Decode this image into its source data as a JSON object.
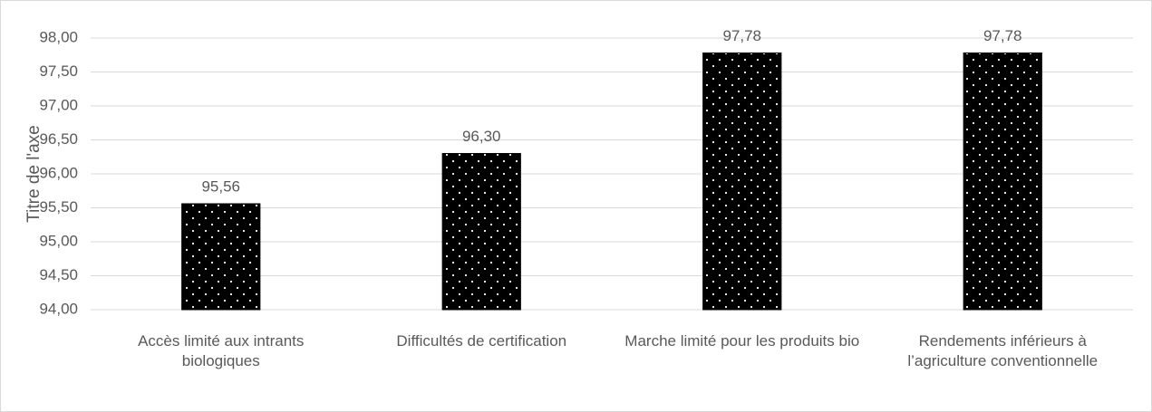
{
  "chart_data": {
    "type": "bar",
    "y_label": "Titre de l'axe",
    "categories": [
      "Accès limité aux intrants biologiques",
      "Difficultés de certification",
      "Marche limité pour les produits bio",
      "Rendements inférieurs à l’agriculture conventionnelle"
    ],
    "values": [
      95.56,
      96.3,
      97.78,
      97.78
    ],
    "value_labels": [
      "95,56",
      "96,30",
      "97,78",
      "97,78"
    ],
    "color": "#000000",
    "ylim": [
      94,
      98
    ],
    "yticks": [
      {
        "value": 94,
        "label": "94,00"
      },
      {
        "value": 94.5,
        "label": "94,50"
      },
      {
        "value": 95,
        "label": "95,00"
      },
      {
        "value": 95.5,
        "label": "95,50"
      },
      {
        "value": 96,
        "label": "96,00"
      },
      {
        "value": 96.5,
        "label": "96,50"
      },
      {
        "value": 97,
        "label": "97,00"
      },
      {
        "value": 97.5,
        "label": "97,50"
      },
      {
        "value": 98,
        "label": "98,00"
      }
    ],
    "grid": true
  }
}
